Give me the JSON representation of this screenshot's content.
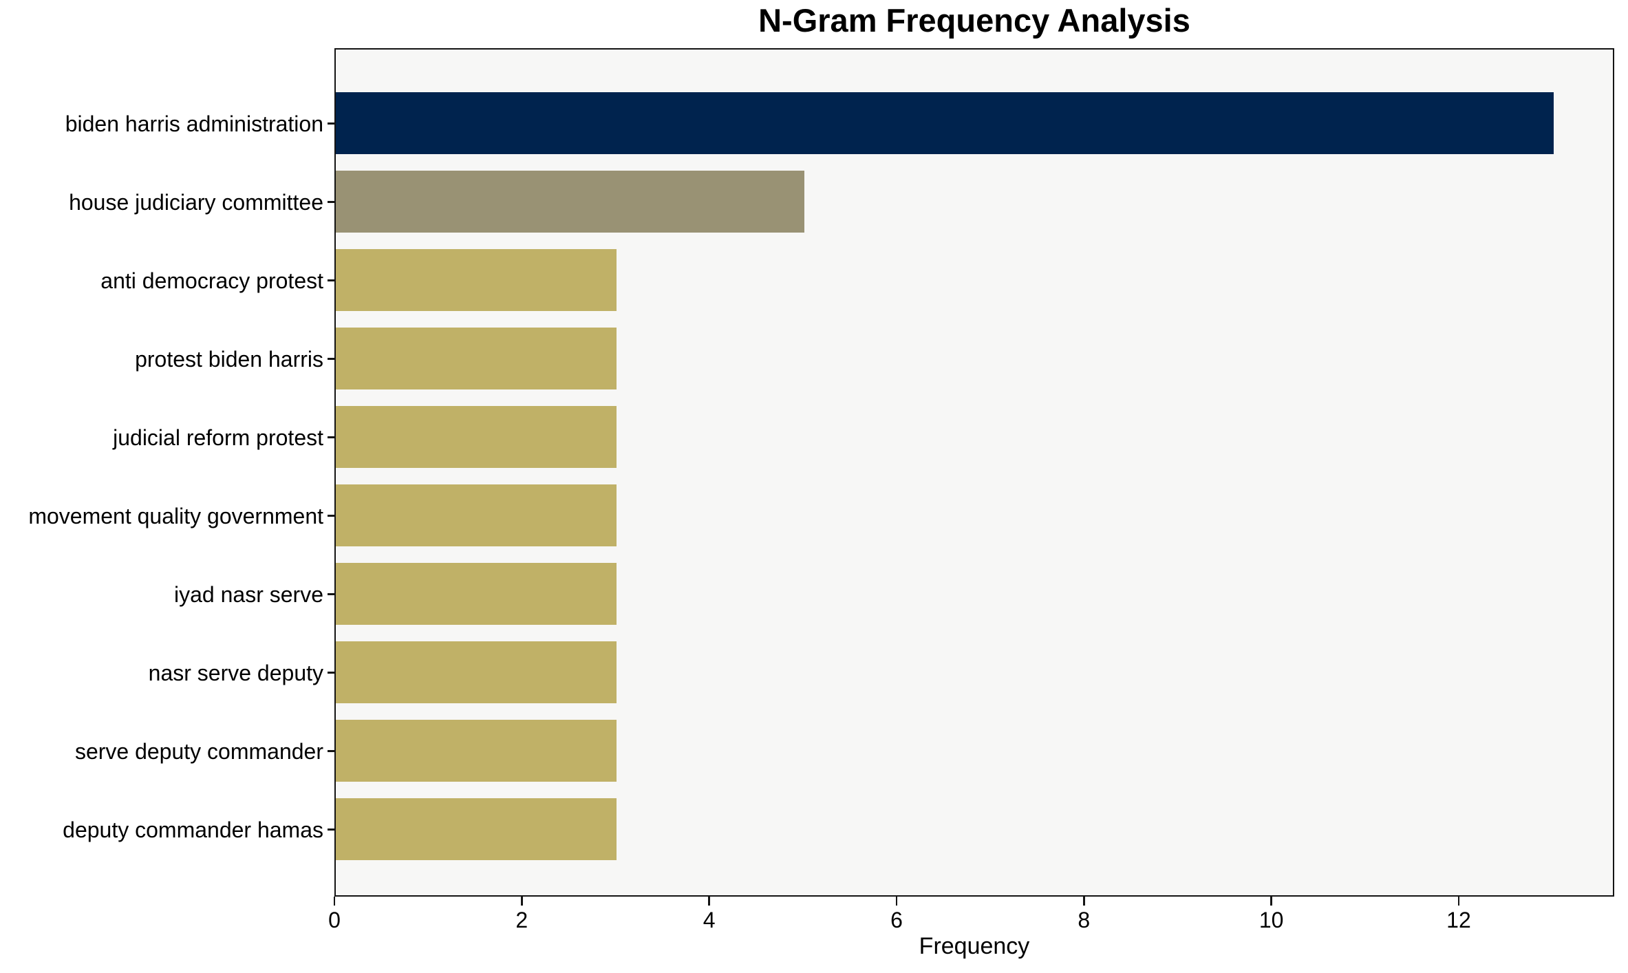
{
  "chart_data": {
    "type": "bar",
    "orientation": "horizontal",
    "title": "N-Gram Frequency Analysis",
    "xlabel": "Frequency",
    "ylabel": "",
    "categories": [
      "biden harris administration",
      "house judiciary committee",
      "anti democracy protest",
      "protest biden harris",
      "judicial reform protest",
      "movement quality government",
      "iyad nasr serve",
      "nasr serve deputy",
      "serve deputy commander",
      "deputy commander hamas"
    ],
    "values": [
      13,
      5,
      3,
      3,
      3,
      3,
      3,
      3,
      3,
      3
    ],
    "bar_colors": [
      "#00234e",
      "#999274",
      "#c0b167",
      "#c0b167",
      "#c0b167",
      "#c0b167",
      "#c0b167",
      "#c0b167",
      "#c0b167",
      "#c0b167"
    ],
    "xlim": [
      0,
      13.66
    ],
    "xticks": [
      "0",
      "2",
      "4",
      "6",
      "8",
      "10",
      "12"
    ],
    "xtick_values": [
      0,
      2,
      4,
      6,
      8,
      10,
      12
    ],
    "grid": false,
    "legend": null,
    "plot_background": "#f7f7f6",
    "figure_background": "#ffffff",
    "spine_color": "#141414"
  }
}
